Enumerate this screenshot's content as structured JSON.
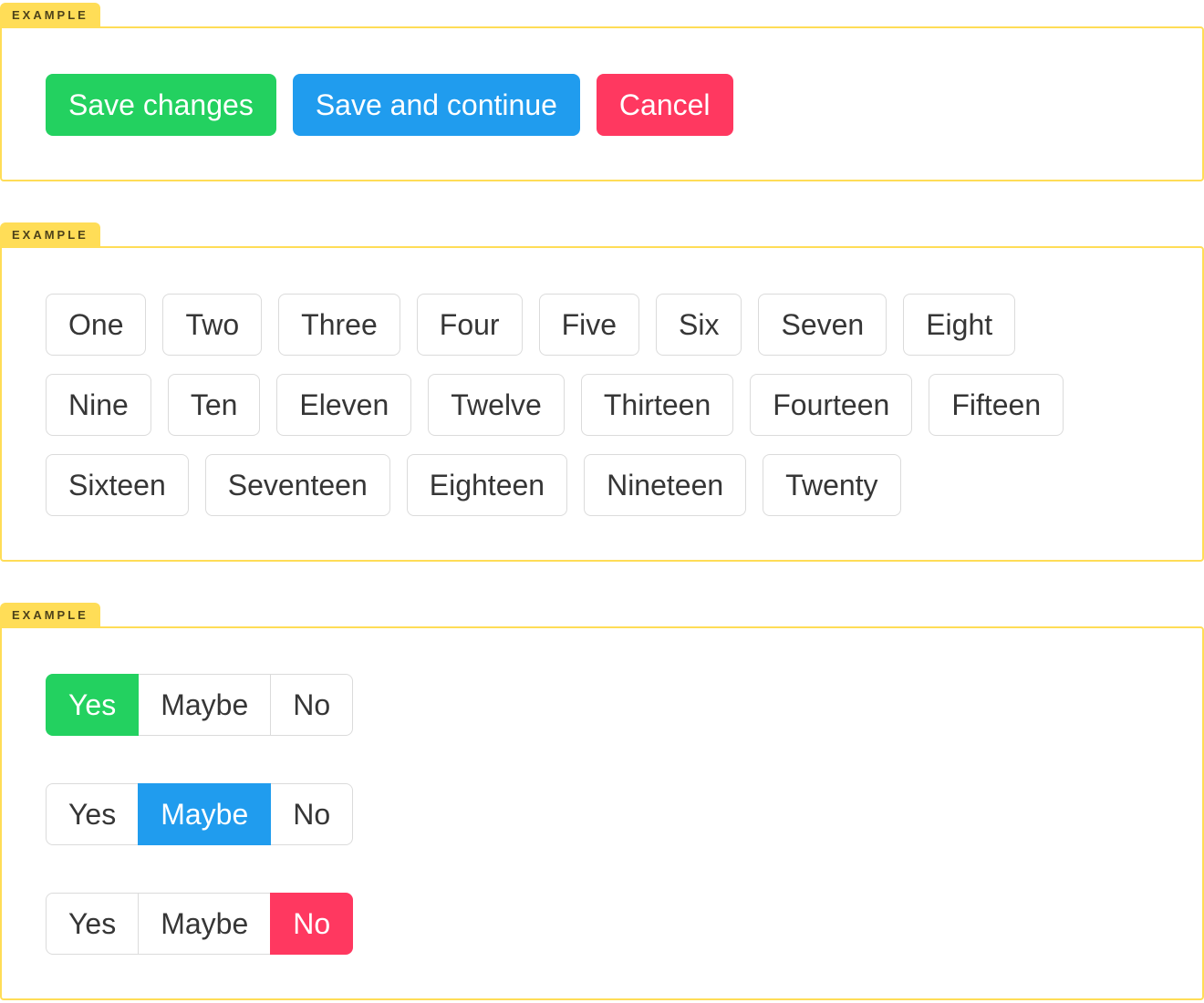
{
  "example_tag": "EXAMPLE",
  "colors": {
    "success": "#23d160",
    "info": "#209cee",
    "danger": "#ff3860",
    "warning_tab": "#ffdd57",
    "button_border": "#dbdbdb",
    "button_text": "#363636"
  },
  "examples": [
    {
      "name": "action-buttons",
      "buttons": [
        {
          "label": "Save changes",
          "variant": "success"
        },
        {
          "label": "Save and continue",
          "variant": "info"
        },
        {
          "label": "Cancel",
          "variant": "danger"
        }
      ]
    },
    {
      "name": "button-list",
      "buttons": [
        "One",
        "Two",
        "Three",
        "Four",
        "Five",
        "Six",
        "Seven",
        "Eight",
        "Nine",
        "Ten",
        "Eleven",
        "Twelve",
        "Thirteen",
        "Fourteen",
        "Fifteen",
        "Sixteen",
        "Seventeen",
        "Eighteen",
        "Nineteen",
        "Twenty"
      ]
    },
    {
      "name": "button-addon-groups",
      "groups": [
        {
          "options": [
            "Yes",
            "Maybe",
            "No"
          ],
          "selected": "Yes",
          "selected_index": 0,
          "variant": "success"
        },
        {
          "options": [
            "Yes",
            "Maybe",
            "No"
          ],
          "selected": "Maybe",
          "selected_index": 1,
          "variant": "info"
        },
        {
          "options": [
            "Yes",
            "Maybe",
            "No"
          ],
          "selected": "No",
          "selected_index": 2,
          "variant": "danger"
        }
      ]
    }
  ]
}
